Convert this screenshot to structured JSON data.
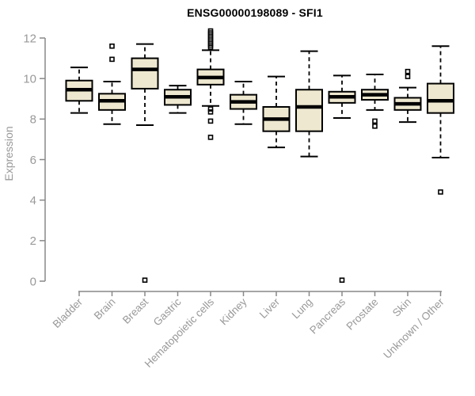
{
  "title": "ENSG00000198089 - SFI1",
  "chart_data": {
    "type": "boxplot",
    "title": "ENSG00000198089 - SFI1",
    "xlabel": "",
    "ylabel": "Expression",
    "ylim": [
      0,
      12
    ],
    "yticks": [
      0,
      2,
      4,
      6,
      8,
      10,
      12
    ],
    "grid": false,
    "legend": "none",
    "colors": {
      "box_fill": "#EEE8D0",
      "box_border": "#000000",
      "median": "#000000",
      "whisker": "#000000",
      "outlier": "#000000",
      "axis": "#888888",
      "tick_label": "#999999",
      "title": "#000000",
      "background": "#ffffff"
    },
    "categories": [
      "Bladder",
      "Brain",
      "Breast",
      "Gastric",
      "Hematopoietic cells",
      "Kidney",
      "Liver",
      "Lung",
      "Pancreas",
      "Prostate",
      "Skin",
      "Unknown / Other"
    ],
    "series": [
      {
        "name": "Bladder",
        "whislo": 8.3,
        "q1": 8.9,
        "med": 9.45,
        "q3": 9.9,
        "whishi": 10.55,
        "outliers": []
      },
      {
        "name": "Brain",
        "whislo": 7.75,
        "q1": 8.45,
        "med": 8.9,
        "q3": 9.25,
        "whishi": 9.85,
        "outliers": [
          10.95,
          11.6
        ]
      },
      {
        "name": "Breast",
        "whislo": 7.7,
        "q1": 9.5,
        "med": 10.45,
        "q3": 11.0,
        "whishi": 11.7,
        "outliers": [
          0.05
        ]
      },
      {
        "name": "Gastric",
        "whislo": 8.3,
        "q1": 8.7,
        "med": 9.1,
        "q3": 9.45,
        "whishi": 9.65,
        "outliers": []
      },
      {
        "name": "Hematopoietic cells",
        "whislo": 8.65,
        "q1": 9.7,
        "med": 10.05,
        "q3": 10.45,
        "whishi": 11.4,
        "outliers": [
          12.35,
          12.25,
          12.15,
          12.05,
          11.95,
          11.85,
          11.75,
          11.65,
          11.55,
          8.5,
          8.35,
          7.9,
          7.1
        ]
      },
      {
        "name": "Kidney",
        "whislo": 7.75,
        "q1": 8.5,
        "med": 8.85,
        "q3": 9.2,
        "whishi": 9.85,
        "outliers": []
      },
      {
        "name": "Liver",
        "whislo": 6.6,
        "q1": 7.4,
        "med": 8.0,
        "q3": 8.6,
        "whishi": 10.1,
        "outliers": []
      },
      {
        "name": "Lung",
        "whislo": 6.15,
        "q1": 7.4,
        "med": 8.6,
        "q3": 9.45,
        "whishi": 11.35,
        "outliers": []
      },
      {
        "name": "Pancreas",
        "whislo": 8.05,
        "q1": 8.8,
        "med": 9.1,
        "q3": 9.35,
        "whishi": 10.15,
        "outliers": [
          0.05
        ]
      },
      {
        "name": "Prostate",
        "whislo": 8.45,
        "q1": 8.95,
        "med": 9.2,
        "q3": 9.45,
        "whishi": 10.2,
        "outliers": [
          7.9,
          7.65
        ]
      },
      {
        "name": "Skin",
        "whislo": 7.85,
        "q1": 8.45,
        "med": 8.75,
        "q3": 9.05,
        "whishi": 9.55,
        "outliers": [
          10.35,
          10.1
        ]
      },
      {
        "name": "Unknown / Other",
        "whislo": 6.1,
        "q1": 8.3,
        "med": 8.9,
        "q3": 9.75,
        "whishi": 11.6,
        "outliers": [
          4.4
        ]
      }
    ]
  }
}
